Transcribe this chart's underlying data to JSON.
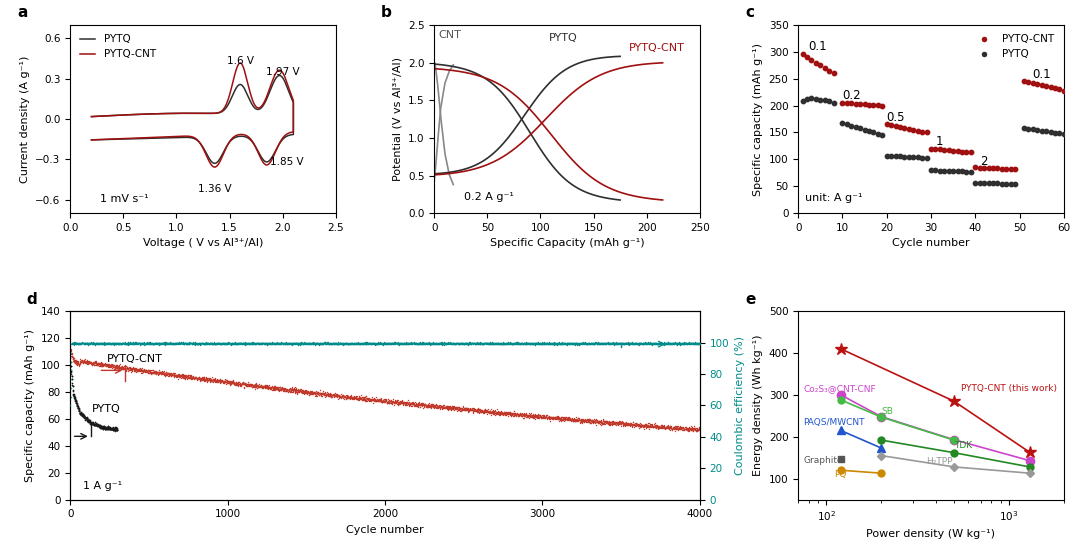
{
  "panel_a": {
    "xlabel": "Voltage ( V vs Al³⁺/Al)",
    "ylabel": "Current density (A g⁻¹)",
    "xlim": [
      0.0,
      2.5
    ],
    "ylim": [
      -0.7,
      0.7
    ],
    "xticks": [
      0.0,
      0.5,
      1.0,
      1.5,
      2.0,
      2.5
    ],
    "yticks": [
      -0.6,
      -0.3,
      0.0,
      0.3,
      0.6
    ],
    "annotation": "1 mV s⁻¹",
    "legend": [
      "PYTQ",
      "PYTQ-CNT"
    ],
    "colors": [
      "#2f2f2f",
      "#a01010"
    ]
  },
  "panel_b": {
    "xlabel": "Specific Capacity (mAh g⁻¹)",
    "ylabel": "Potential (V vs Al³⁺/Al)",
    "xlim": [
      0,
      250
    ],
    "ylim": [
      0.0,
      2.5
    ],
    "yticks": [
      0.0,
      0.5,
      1.0,
      1.5,
      2.0,
      2.5
    ],
    "xticks": [
      0,
      50,
      100,
      150,
      200,
      250
    ],
    "annotation": "0.2 A g⁻¹",
    "colors": [
      "#888888",
      "#2f2f2f",
      "#a01010"
    ]
  },
  "panel_c": {
    "xlabel": "Cycle number",
    "ylabel": "Specific capacity (mAh g⁻¹)",
    "xlim": [
      0,
      60
    ],
    "ylim": [
      0,
      350
    ],
    "xticks": [
      0,
      10,
      20,
      30,
      40,
      50,
      60
    ],
    "yticks": [
      0,
      50,
      100,
      150,
      200,
      250,
      300,
      350
    ],
    "annotation": "unit: A g⁻¹",
    "colors": [
      "#a01010",
      "#2f2f2f"
    ]
  },
  "panel_d": {
    "xlabel": "Cycle number",
    "ylabel_left": "Specific capacity (mAh g⁻¹)",
    "ylabel_right": "Coulombic efficiency (%)",
    "xlim": [
      0,
      4000
    ],
    "ylim_left": [
      0,
      140
    ],
    "xticks": [
      0,
      1000,
      2000,
      3000,
      4000
    ],
    "yticks_left": [
      0,
      20,
      40,
      60,
      80,
      100,
      120,
      140
    ],
    "yticks_right": [
      0,
      20,
      40,
      60,
      80,
      100
    ],
    "annotation": "1 A g⁻¹",
    "colors": [
      "#a01010",
      "#2f2f2f"
    ],
    "coulombic_color": "#008b8b"
  },
  "panel_e": {
    "xlabel": "Power density (W kg⁻¹)",
    "ylabel": "Energy density (Wh kg⁻¹)",
    "ylim": [
      50,
      500
    ],
    "yticks": [
      100,
      200,
      300,
      400,
      500
    ]
  }
}
